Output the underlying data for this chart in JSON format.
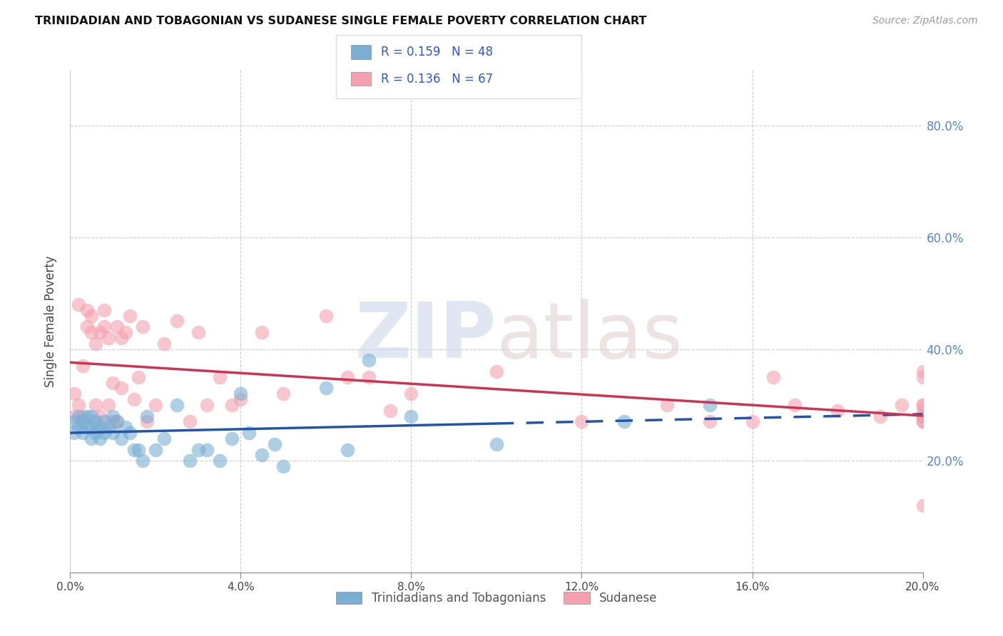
{
  "title": "TRINIDADIAN AND TOBAGONIAN VS SUDANESE SINGLE FEMALE POVERTY CORRELATION CHART",
  "source": "Source: ZipAtlas.com",
  "ylabel": "Single Female Poverty",
  "xlim": [
    0.0,
    0.2
  ],
  "ylim": [
    0.0,
    0.9
  ],
  "x_ticks": [
    0.0,
    0.04,
    0.08,
    0.12,
    0.16,
    0.2
  ],
  "y_ticks": [
    0.0,
    0.2,
    0.4,
    0.6,
    0.8
  ],
  "x_tick_labels": [
    "0.0%",
    "4.0%",
    "8.0%",
    "12.0%",
    "16.0%",
    "20.0%"
  ],
  "y_tick_labels_right": [
    "",
    "20.0%",
    "40.0%",
    "60.0%",
    "80.0%"
  ],
  "legend_label1": "Trinidadians and Tobagonians",
  "legend_label2": "Sudanese",
  "blue_color": "#7aafd4",
  "pink_color": "#f4a0b0",
  "blue_line_color": "#2255aa",
  "pink_line_color": "#cc3355",
  "tri_x": [
    0.001,
    0.001,
    0.002,
    0.002,
    0.003,
    0.003,
    0.004,
    0.004,
    0.005,
    0.005,
    0.005,
    0.006,
    0.006,
    0.007,
    0.007,
    0.008,
    0.008,
    0.009,
    0.01,
    0.01,
    0.011,
    0.012,
    0.013,
    0.014,
    0.015,
    0.016,
    0.017,
    0.018,
    0.02,
    0.022,
    0.025,
    0.028,
    0.03,
    0.032,
    0.035,
    0.038,
    0.04,
    0.042,
    0.045,
    0.048,
    0.05,
    0.06,
    0.065,
    0.07,
    0.08,
    0.1,
    0.13,
    0.15
  ],
  "tri_y": [
    0.27,
    0.25,
    0.26,
    0.28,
    0.25,
    0.27,
    0.26,
    0.28,
    0.24,
    0.26,
    0.28,
    0.25,
    0.27,
    0.24,
    0.26,
    0.25,
    0.27,
    0.26,
    0.25,
    0.28,
    0.27,
    0.24,
    0.26,
    0.25,
    0.22,
    0.22,
    0.2,
    0.28,
    0.22,
    0.24,
    0.3,
    0.2,
    0.22,
    0.22,
    0.2,
    0.24,
    0.32,
    0.25,
    0.21,
    0.23,
    0.19,
    0.33,
    0.22,
    0.38,
    0.28,
    0.23,
    0.27,
    0.3
  ],
  "sud_x": [
    0.001,
    0.001,
    0.002,
    0.002,
    0.003,
    0.003,
    0.004,
    0.004,
    0.005,
    0.005,
    0.006,
    0.006,
    0.007,
    0.007,
    0.008,
    0.008,
    0.009,
    0.009,
    0.01,
    0.01,
    0.011,
    0.011,
    0.012,
    0.012,
    0.013,
    0.014,
    0.015,
    0.016,
    0.017,
    0.018,
    0.02,
    0.022,
    0.025,
    0.028,
    0.03,
    0.032,
    0.035,
    0.038,
    0.04,
    0.045,
    0.05,
    0.06,
    0.065,
    0.07,
    0.075,
    0.08,
    0.1,
    0.12,
    0.14,
    0.15,
    0.16,
    0.165,
    0.17,
    0.18,
    0.19,
    0.195,
    0.2,
    0.2,
    0.2,
    0.2,
    0.2,
    0.2,
    0.2,
    0.2,
    0.2,
    0.2,
    0.2
  ],
  "sud_y": [
    0.28,
    0.32,
    0.48,
    0.3,
    0.37,
    0.28,
    0.47,
    0.44,
    0.46,
    0.43,
    0.41,
    0.3,
    0.28,
    0.43,
    0.44,
    0.47,
    0.42,
    0.3,
    0.34,
    0.27,
    0.27,
    0.44,
    0.42,
    0.33,
    0.43,
    0.46,
    0.31,
    0.35,
    0.44,
    0.27,
    0.3,
    0.41,
    0.45,
    0.27,
    0.43,
    0.3,
    0.35,
    0.3,
    0.31,
    0.43,
    0.32,
    0.46,
    0.35,
    0.35,
    0.29,
    0.32,
    0.36,
    0.27,
    0.3,
    0.27,
    0.27,
    0.35,
    0.3,
    0.29,
    0.28,
    0.3,
    0.36,
    0.28,
    0.28,
    0.35,
    0.27,
    0.12,
    0.29,
    0.3,
    0.27,
    0.3,
    0.28
  ]
}
